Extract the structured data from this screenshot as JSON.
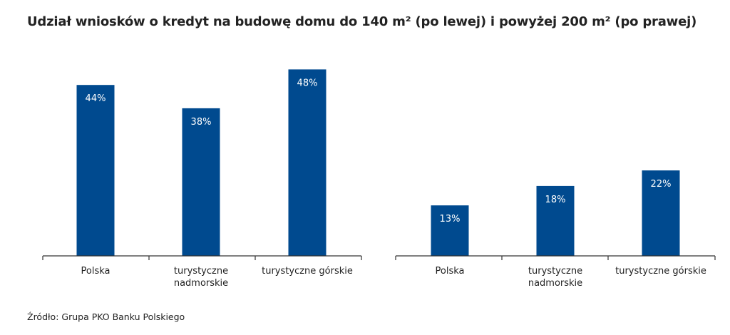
{
  "title": "Udział wniosków o kredyt na budowę domu do 140 m² (po lewej) i powyżej 200 m² (po prawej)",
  "source": "Źródło: Grupa PKO Banku Polskiego",
  "colors": {
    "bar": "#004a8f",
    "axis": "#333333",
    "text": "#222222",
    "bar_label": "#ffffff"
  },
  "chart_data": [
    {
      "type": "bar",
      "categories": [
        "Polska",
        "turystyczne nadmorskie",
        "turystyczne górskie"
      ],
      "category_lines": [
        [
          "Polska"
        ],
        [
          "turystyczne",
          "nadmorskie"
        ],
        [
          "turystyczne górskie"
        ]
      ],
      "values": [
        44,
        38,
        48
      ],
      "value_labels": [
        "44%",
        "38%",
        "48%"
      ],
      "ylim": [
        0,
        50
      ],
      "grid": false,
      "legend": "none"
    },
    {
      "type": "bar",
      "categories": [
        "Polska",
        "turystyczne nadmorskie",
        "turystyczne górskie"
      ],
      "category_lines": [
        [
          "Polska"
        ],
        [
          "turystyczne",
          "nadmorskie"
        ],
        [
          "turystyczne górskie"
        ]
      ],
      "values": [
        13,
        18,
        22
      ],
      "value_labels": [
        "13%",
        "18%",
        "22%"
      ],
      "ylim": [
        0,
        50
      ],
      "grid": false,
      "legend": "none"
    }
  ]
}
